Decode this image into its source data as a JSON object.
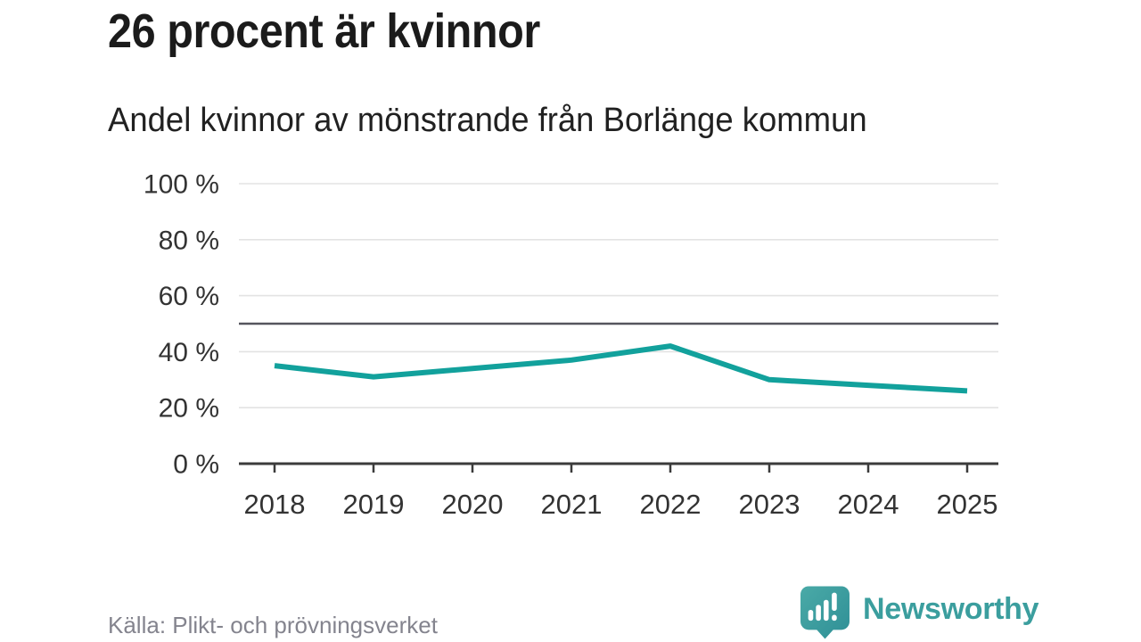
{
  "chart_data": {
    "type": "line",
    "title": "26 procent är kvinnor",
    "subtitle": "Andel kvinnor av mönstrande från Borlänge kommun",
    "categories": [
      "2018",
      "2019",
      "2020",
      "2021",
      "2022",
      "2023",
      "2024",
      "2025"
    ],
    "series": [
      {
        "name": "Andel kvinnor av mönstrande från Borlänge kommun",
        "values": [
          35,
          31,
          34,
          37,
          42,
          30,
          28,
          26
        ]
      }
    ],
    "unit": "%",
    "ylim": [
      0,
      100
    ],
    "yticks": [
      0,
      20,
      40,
      60,
      80,
      100
    ],
    "ytick_suffix": " %",
    "reference_line": 50,
    "grid": true,
    "legend": "none",
    "colors": {
      "line": "#12a19c",
      "reference": "#55555e",
      "axis": "#3b3b3b",
      "grid": "#e3e3e3",
      "tick_label": "#333333"
    }
  },
  "footer": {
    "source": "Källa: Plikt- och prövningsverket",
    "brand": "Newsworthy",
    "brand_color": "#3b9e9e",
    "logo_icon": "newsworthy-speech-bubble-bar-chart-icon"
  }
}
